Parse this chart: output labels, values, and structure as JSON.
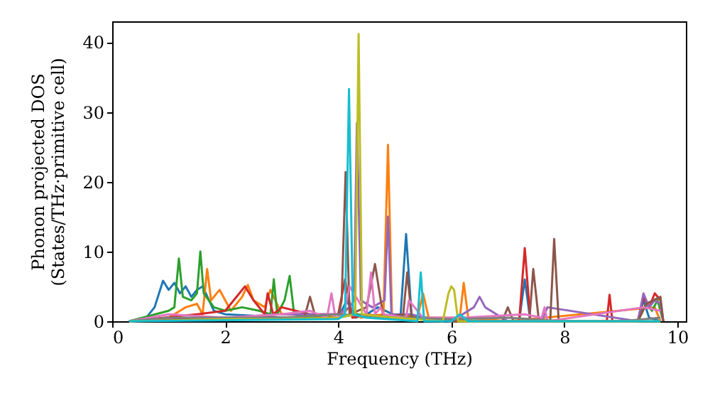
{
  "chart_data": {
    "type": "line",
    "xlabel": "Frequency (THz)",
    "ylabel": "Phonon projected DOS\n(States/THz·primitive cell)",
    "xlim": [
      0,
      10.15
    ],
    "ylim": [
      0,
      43
    ],
    "xticks": [
      0,
      2,
      4,
      6,
      8,
      10
    ],
    "yticks": [
      0,
      10,
      20,
      30,
      40
    ],
    "grid": false,
    "line_style": "solid",
    "marker": "none",
    "series": [
      {
        "color": "#1f77b4",
        "x": [
          0.3,
          0.6,
          0.75,
          0.9,
          1.0,
          1.1,
          1.2,
          1.3,
          1.4,
          1.5,
          1.6,
          1.8,
          2.0,
          2.5,
          3.0,
          3.5,
          4.0,
          4.15,
          4.3,
          4.5,
          4.7,
          5.1,
          5.2,
          5.3,
          5.5,
          6.0,
          7.2,
          7.3,
          7.4,
          7.8,
          9.3,
          9.4,
          9.5,
          9.7
        ],
        "values": [
          0,
          0.5,
          2,
          5.8,
          4.5,
          5.5,
          4,
          5,
          3.5,
          4.5,
          5,
          1.5,
          1,
          0.8,
          0.5,
          0.5,
          0.5,
          3,
          0.5,
          1,
          2,
          0.5,
          12.5,
          0.5,
          0.5,
          0,
          0,
          6,
          0,
          0,
          0,
          3,
          0.5,
          0
        ]
      },
      {
        "color": "#ff7f0e",
        "x": [
          0.3,
          1.0,
          1.3,
          1.5,
          1.6,
          1.68,
          1.75,
          1.9,
          2.1,
          2.3,
          2.4,
          2.5,
          2.7,
          2.8,
          3.0,
          3.5,
          4.0,
          4.2,
          4.4,
          4.8,
          4.88,
          4.95,
          5.4,
          5.5,
          5.6,
          6.15,
          6.22,
          6.3,
          7.0,
          9.6,
          9.7
        ],
        "values": [
          0,
          0.5,
          2,
          2.5,
          1,
          7.5,
          3,
          4.5,
          1.5,
          3.5,
          5.2,
          3,
          2,
          4.5,
          1,
          1,
          0.5,
          2,
          0.5,
          1,
          25.3,
          1,
          0.5,
          4,
          0.5,
          0.5,
          5.5,
          0.5,
          0,
          2,
          0
        ]
      },
      {
        "color": "#2ca02c",
        "x": [
          0.3,
          1.0,
          1.1,
          1.18,
          1.25,
          1.4,
          1.5,
          1.56,
          1.62,
          1.8,
          2.0,
          2.3,
          2.6,
          2.8,
          2.86,
          2.92,
          3.05,
          3.14,
          3.22,
          3.5,
          4.0,
          4.3,
          5.0,
          5.2,
          6.0,
          9.3,
          9.45,
          9.55,
          9.65,
          9.75
        ],
        "values": [
          0,
          1.5,
          2,
          9,
          3.5,
          3,
          4,
          10,
          4,
          2,
          1.5,
          2,
          1.5,
          1,
          6,
          1,
          3,
          6.5,
          1,
          0.5,
          0.5,
          1,
          0.5,
          1,
          0,
          0,
          2.5,
          1.5,
          3,
          0
        ]
      },
      {
        "color": "#d62728",
        "x": [
          0.3,
          1.5,
          2.0,
          2.25,
          2.35,
          2.5,
          2.7,
          2.75,
          2.85,
          3.0,
          3.5,
          4.0,
          4.12,
          4.25,
          4.5,
          5.0,
          5.5,
          6.0,
          7.2,
          7.3,
          7.4,
          8.75,
          8.8,
          8.85,
          9.3,
          9.4,
          9.5,
          9.6,
          9.7,
          9.75
        ],
        "values": [
          0,
          1,
          1.5,
          4,
          5,
          3,
          1,
          4,
          1,
          2,
          1,
          1,
          6,
          0.5,
          1,
          0.5,
          0.5,
          0,
          0,
          10.5,
          0,
          0,
          3.8,
          0,
          0,
          3.5,
          2,
          4,
          3,
          0
        ]
      },
      {
        "color": "#9467bd",
        "x": [
          0.3,
          2.0,
          3.0,
          4.0,
          4.2,
          4.28,
          4.33,
          4.4,
          4.6,
          4.82,
          4.88,
          4.94,
          5.3,
          5.5,
          6.0,
          6.4,
          6.5,
          6.6,
          6.8,
          7.0,
          7.6,
          7.7,
          9.3,
          9.4,
          9.5,
          9.6,
          9.7,
          9.75
        ],
        "values": [
          0,
          0.5,
          1,
          1,
          2,
          3,
          28.4,
          3,
          2,
          3,
          15,
          1,
          1,
          0.5,
          0,
          2,
          3.5,
          2,
          1,
          0,
          0,
          2,
          0,
          4,
          2,
          3,
          2.5,
          0
        ]
      },
      {
        "color": "#8c564b",
        "x": [
          0.3,
          2.0,
          3.0,
          3.4,
          3.5,
          3.6,
          4.0,
          4.06,
          4.13,
          4.2,
          4.5,
          4.65,
          4.8,
          5.15,
          5.22,
          5.3,
          6.0,
          6.9,
          7.0,
          7.1,
          7.38,
          7.45,
          7.55,
          7.75,
          7.82,
          7.9,
          9.3,
          9.45,
          9.7,
          9.75
        ],
        "values": [
          0,
          0.5,
          0.5,
          0.5,
          3.5,
          0.5,
          0.5,
          3,
          21.4,
          1,
          2,
          8.2,
          0.5,
          1,
          7,
          0.5,
          0,
          0,
          2,
          0,
          0,
          7.5,
          0,
          0,
          11.8,
          0,
          0,
          2.5,
          3.5,
          0
        ]
      },
      {
        "color": "#e377c2",
        "x": [
          0.3,
          1.0,
          2.0,
          3.0,
          3.5,
          3.8,
          3.88,
          3.95,
          4.1,
          4.2,
          4.5,
          4.58,
          4.65,
          4.75,
          4.8,
          5.2,
          5.25,
          5.5,
          6.2,
          7.3,
          7.6,
          7.65,
          7.7,
          9.4,
          9.7
        ],
        "values": [
          0,
          1,
          0.5,
          1,
          1.5,
          0.5,
          4,
          0.5,
          1,
          5,
          1,
          7,
          1,
          2,
          1,
          0.5,
          3,
          0.5,
          0.5,
          1,
          0.5,
          2,
          0,
          2,
          1.5
        ]
      },
      {
        "color": "#7f7f7f",
        "x": [
          0.3,
          1.0,
          2.0,
          3.0,
          4.0,
          5.0,
          6.0,
          7.0,
          8.0,
          9.0,
          9.7
        ],
        "values": [
          0,
          0.5,
          0.5,
          0.5,
          1,
          0.5,
          0.3,
          0.5,
          0,
          0,
          0.5
        ]
      },
      {
        "color": "#bcbd22",
        "x": [
          0.3,
          2.0,
          3.0,
          4.0,
          4.3,
          4.36,
          4.42,
          5.0,
          5.85,
          5.95,
          6.0,
          6.05,
          6.12,
          9.7
        ],
        "values": [
          0,
          0.3,
          0.3,
          0.5,
          1,
          41.2,
          1,
          0.5,
          0,
          4,
          5,
          4.5,
          0,
          0
        ]
      },
      {
        "color": "#17becf",
        "x": [
          0.3,
          4.0,
          4.12,
          4.19,
          4.26,
          4.5,
          5.4,
          5.46,
          5.52,
          6.0,
          6.15,
          6.3,
          9.7
        ],
        "values": [
          0,
          0.3,
          1,
          33.3,
          1,
          0.5,
          0,
          7,
          0,
          0,
          1,
          0,
          0
        ]
      }
    ]
  }
}
